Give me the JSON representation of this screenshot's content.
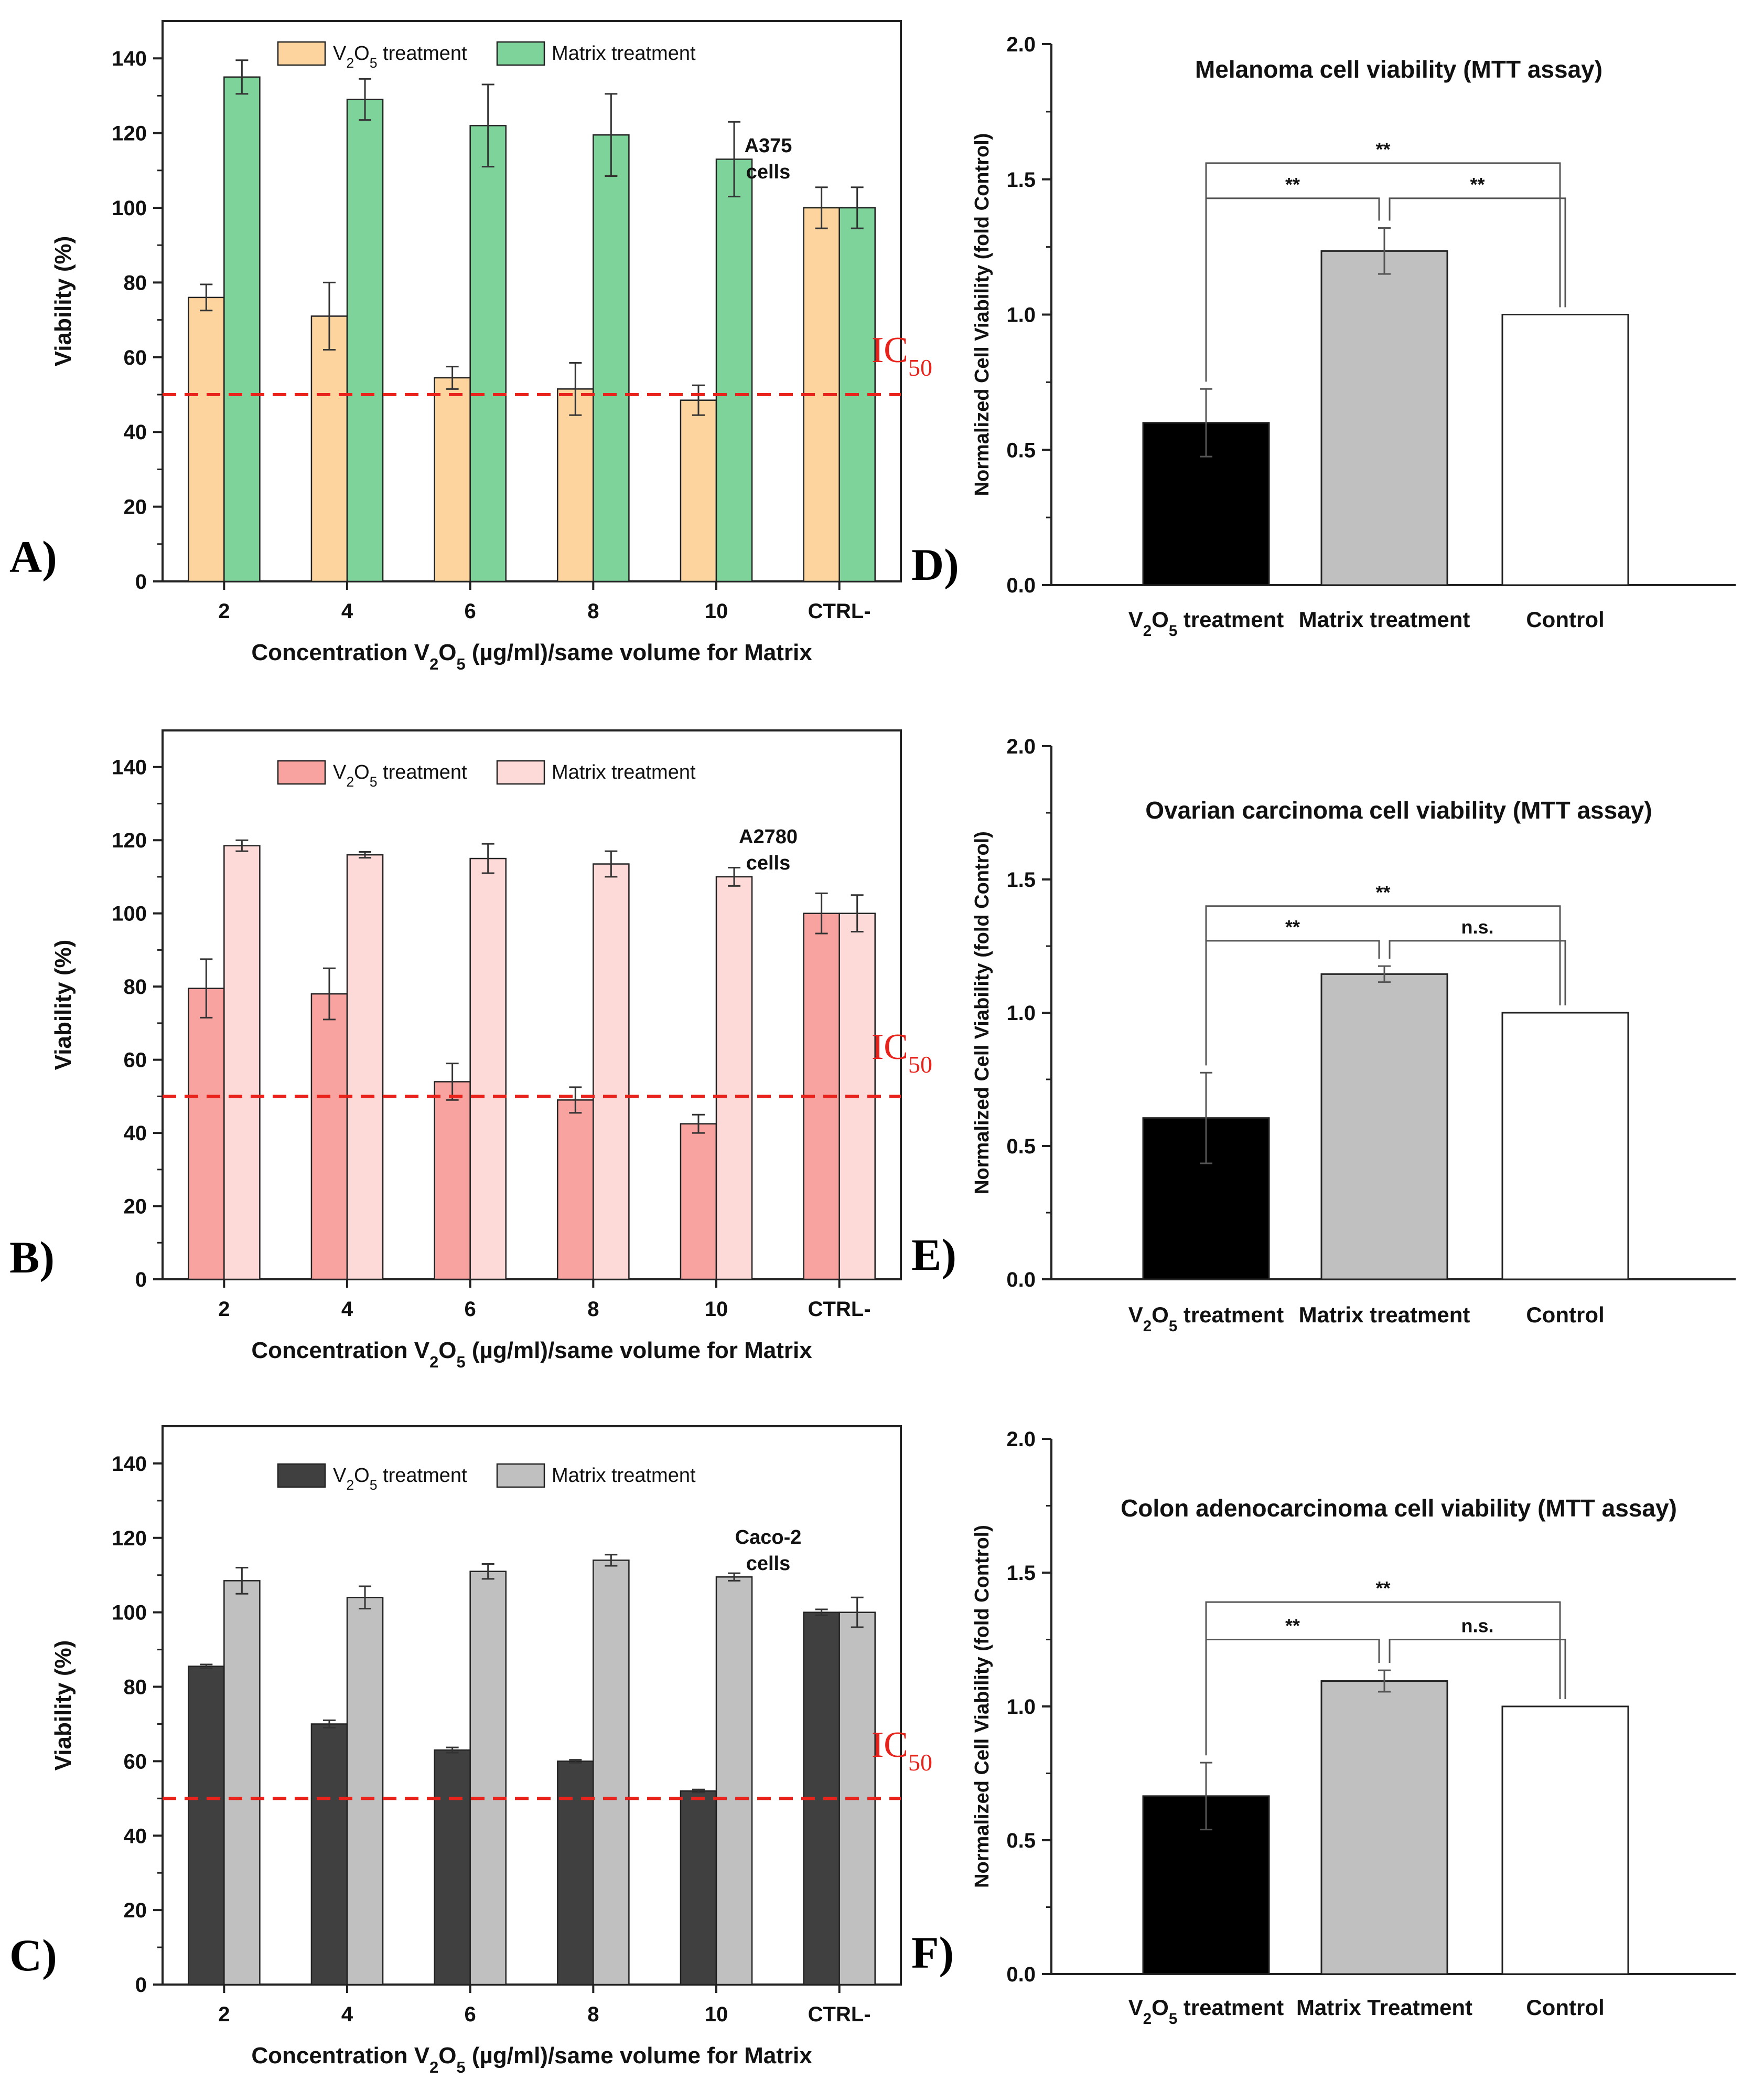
{
  "panel_labels": [
    "A)",
    "B)",
    "C)",
    "D)",
    "E)",
    "F)"
  ],
  "ic50_label": "IC",
  "ic50_subscript": "50",
  "colors": {
    "ic50_line": "#e8231c",
    "A_v2o5": "#fdd49e",
    "A_matrix": "#7ed39b",
    "B_v2o5": "#f8a3a0",
    "B_matrix": "#fdd9d8",
    "C_v2o5": "#404040",
    "C_matrix": "#c0c0c0",
    "D_bars": [
      "#000000",
      "#c0c0c0",
      "#ffffff"
    ]
  },
  "chart_data": [
    {
      "id": "A",
      "type": "bar",
      "panel": "A)",
      "categories": [
        "2",
        "4",
        "6",
        "8",
        "10",
        "CTRL-"
      ],
      "series": [
        {
          "name": "V2O5 treatment",
          "legend_main": "V",
          "legend_sub1": "2",
          "legend_mid": "O",
          "legend_sub2": "5",
          "legend_tail": " treatment",
          "values": [
            76,
            71,
            54.5,
            51.5,
            48.5,
            100
          ],
          "errors": [
            3.5,
            9,
            3,
            7,
            4,
            5.5
          ],
          "color": "#fdd49e"
        },
        {
          "name": "Matrix treatment",
          "legend_label": "Matrix treatment",
          "values": [
            135,
            129,
            122,
            119.5,
            113,
            100
          ],
          "errors": [
            4.5,
            5.5,
            11,
            11,
            10,
            5.5
          ],
          "color": "#7ed39b"
        }
      ],
      "cell_line": [
        "A375",
        "cells"
      ],
      "xlabel": {
        "pre": "Concentration V",
        "sub1": "2",
        "mid": "O",
        "sub2": "5",
        "post": " (µg/ml)/same volume for Matrix"
      },
      "ylabel": "Viability (%)",
      "ylim": [
        0,
        150
      ],
      "yticks": [
        0,
        20,
        40,
        60,
        80,
        100,
        120,
        140
      ],
      "ic50": 50
    },
    {
      "id": "B",
      "type": "bar",
      "panel": "B)",
      "categories": [
        "2",
        "4",
        "6",
        "8",
        "10",
        "CTRL-"
      ],
      "series": [
        {
          "name": "V2O5 treatment",
          "legend_main": "V",
          "legend_sub1": "2",
          "legend_mid": "O",
          "legend_sub2": "5",
          "legend_tail": " treatment",
          "values": [
            79.5,
            78,
            54,
            49,
            42.5,
            100
          ],
          "errors": [
            8,
            7,
            5,
            3.5,
            2.5,
            5.5
          ],
          "color": "#f8a3a0"
        },
        {
          "name": "Matrix treatment",
          "legend_label": "Matrix treatment",
          "values": [
            118.5,
            116,
            115,
            113.5,
            110,
            100
          ],
          "errors": [
            1.5,
            0.8,
            4,
            3.5,
            2.5,
            5
          ],
          "color": "#fdd9d8"
        }
      ],
      "cell_line": [
        "A2780",
        "cells"
      ],
      "xlabel": {
        "pre": "Concentration V",
        "sub1": "2",
        "mid": "O",
        "sub2": "5",
        "post": " (µg/ml)/same volume for Matrix"
      },
      "ylabel": "Viability (%)",
      "ylim": [
        0,
        150
      ],
      "yticks": [
        0,
        20,
        40,
        60,
        80,
        100,
        120,
        140
      ],
      "ic50": 50
    },
    {
      "id": "C",
      "type": "bar",
      "panel": "C)",
      "categories": [
        "2",
        "4",
        "6",
        "8",
        "10",
        "CTRL-"
      ],
      "series": [
        {
          "name": "V2O5 treatment",
          "legend_main": "V",
          "legend_sub1": "2",
          "legend_mid": "O",
          "legend_sub2": "5",
          "legend_tail": " treatment",
          "values": [
            85.5,
            70,
            63,
            60,
            52,
            100
          ],
          "errors": [
            0.5,
            1,
            0.7,
            0.4,
            0.4,
            0.8
          ],
          "color": "#404040"
        },
        {
          "name": "Matrix treatment",
          "legend_label": "Matrix treatment",
          "values": [
            108.5,
            104,
            111,
            114,
            109.5,
            100
          ],
          "errors": [
            3.5,
            3,
            2,
            1.5,
            1,
            4
          ],
          "color": "#c0c0c0"
        }
      ],
      "cell_line": [
        "Caco-2",
        "cells"
      ],
      "xlabel": {
        "pre": "Concentration V",
        "sub1": "2",
        "mid": "O",
        "sub2": "5",
        "post": " (µg/ml)/same volume for Matrix"
      },
      "ylabel": "Viability (%)",
      "ylim": [
        0,
        150
      ],
      "yticks": [
        0,
        20,
        40,
        60,
        80,
        100,
        120,
        140
      ],
      "ic50": 50
    },
    {
      "id": "D",
      "type": "bar",
      "panel": "D)",
      "title": "Melanoma cell viability (MTT assay)",
      "categories": [
        {
          "pre": "V",
          "sub1": "2",
          "mid": "O",
          "sub2": "5",
          "post": " treatment"
        },
        {
          "pre": "Matrix treatment"
        },
        {
          "pre": "Control"
        }
      ],
      "values": [
        0.6,
        1.235,
        1.0
      ],
      "errors": [
        0.125,
        0.085,
        0
      ],
      "colors": [
        "#000000",
        "#c0c0c0",
        "#ffffff"
      ],
      "ylabel": "Normalized Cell Viability (fold Control)",
      "ylim": [
        0,
        2.0
      ],
      "yticks": [
        "0.0",
        "0.5",
        "1.0",
        "1.5",
        "2.0"
      ],
      "significance": [
        {
          "pair": [
            0,
            1
          ],
          "label": "**",
          "level": 1.43
        },
        {
          "pair": [
            1,
            2
          ],
          "label": "**",
          "level": 1.43
        },
        {
          "pair": [
            0,
            2
          ],
          "label": "**",
          "level": 1.56
        }
      ]
    },
    {
      "id": "E",
      "type": "bar",
      "panel": "E)",
      "title": "Ovarian carcinoma cell viability (MTT assay)",
      "categories": [
        {
          "pre": "V",
          "sub1": "2",
          "mid": "O",
          "sub2": "5",
          "post": " treatment"
        },
        {
          "pre": "Matrix treatment"
        },
        {
          "pre": "Control"
        }
      ],
      "values": [
        0.605,
        1.145,
        1.0
      ],
      "errors": [
        0.17,
        0.03,
        0
      ],
      "colors": [
        "#000000",
        "#c0c0c0",
        "#ffffff"
      ],
      "ylabel": "Normalized Cell Viability (fold Control)",
      "ylim": [
        0,
        2.0
      ],
      "yticks": [
        "0.0",
        "0.5",
        "1.0",
        "1.5",
        "2.0"
      ],
      "significance": [
        {
          "pair": [
            0,
            1
          ],
          "label": "**",
          "level": 1.27
        },
        {
          "pair": [
            1,
            2
          ],
          "label": "n.s.",
          "level": 1.27
        },
        {
          "pair": [
            0,
            2
          ],
          "label": "**",
          "level": 1.4
        }
      ]
    },
    {
      "id": "F",
      "type": "bar",
      "panel": "F)",
      "title": "Colon adenocarcinoma cell viability (MTT assay)",
      "categories": [
        {
          "pre": "V",
          "sub1": "2",
          "mid": "O",
          "sub2": "5",
          "post": " treatment"
        },
        {
          "pre": "Matrix Treatment"
        },
        {
          "pre": "Control"
        }
      ],
      "values": [
        0.665,
        1.095,
        1.0
      ],
      "errors": [
        0.125,
        0.04,
        0
      ],
      "colors": [
        "#000000",
        "#c0c0c0",
        "#ffffff"
      ],
      "ylabel": "Normalized Cell Viability (fold Control)",
      "ylim": [
        0,
        2.0
      ],
      "yticks": [
        "0.0",
        "0.5",
        "1.0",
        "1.5",
        "2.0"
      ],
      "significance": [
        {
          "pair": [
            0,
            1
          ],
          "label": "**",
          "level": 1.25
        },
        {
          "pair": [
            1,
            2
          ],
          "label": "n.s.",
          "level": 1.25
        },
        {
          "pair": [
            0,
            2
          ],
          "label": "**",
          "level": 1.39
        }
      ]
    }
  ]
}
